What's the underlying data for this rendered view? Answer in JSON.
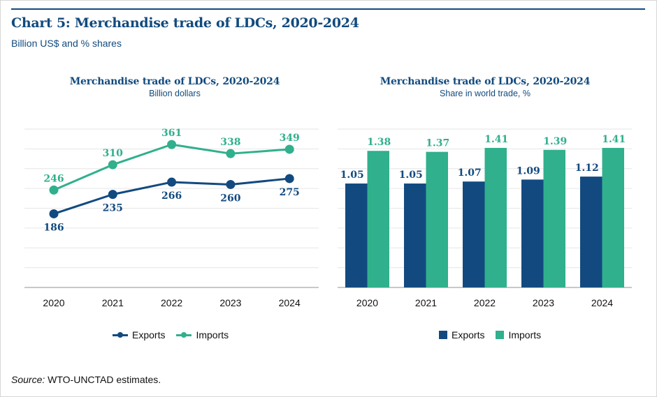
{
  "header": {
    "title": "Chart 5: Merchandise trade of LDCs, 2020-2024",
    "subtitle": "Billion US$ and % shares"
  },
  "colors": {
    "exports": "#124a80",
    "imports": "#30b08d",
    "accent": "#114a7e",
    "grid": "#e6e6e6",
    "baseline": "#c8c8c8"
  },
  "source": {
    "label": "Source:",
    "text": "WTO-UNCTAD estimates."
  },
  "chart_data": [
    {
      "type": "line",
      "title": "Merchandise trade of LDCs, 2020-2024",
      "subtitle": "Billion dollars",
      "categories": [
        "2020",
        "2021",
        "2022",
        "2023",
        "2024"
      ],
      "series": [
        {
          "name": "Exports",
          "values": [
            186,
            235,
            266,
            260,
            275
          ]
        },
        {
          "name": "Imports",
          "values": [
            246,
            310,
            361,
            338,
            349
          ]
        }
      ],
      "xlabel": "",
      "ylabel": "",
      "ylim": [
        0,
        400
      ],
      "ystep": 50,
      "grid": true,
      "y_tick_labels_shown": false,
      "legend": {
        "placement": "bottom",
        "entries": [
          "Exports",
          "Imports"
        ]
      }
    },
    {
      "type": "bar",
      "title": "Merchandise trade of LDCs, 2020-2024",
      "subtitle": "Share in world trade, %",
      "categories": [
        "2020",
        "2021",
        "2022",
        "2023",
        "2024"
      ],
      "series": [
        {
          "name": "Exports",
          "values": [
            1.05,
            1.05,
            1.07,
            1.09,
            1.12
          ]
        },
        {
          "name": "Imports",
          "values": [
            1.38,
            1.37,
            1.41,
            1.39,
            1.41
          ]
        }
      ],
      "xlabel": "",
      "ylabel": "",
      "ylim": [
        0,
        1.6
      ],
      "ystep": 0.2,
      "grid": true,
      "y_tick_labels_shown": false,
      "legend": {
        "placement": "bottom",
        "entries": [
          "Exports",
          "Imports"
        ]
      }
    }
  ]
}
